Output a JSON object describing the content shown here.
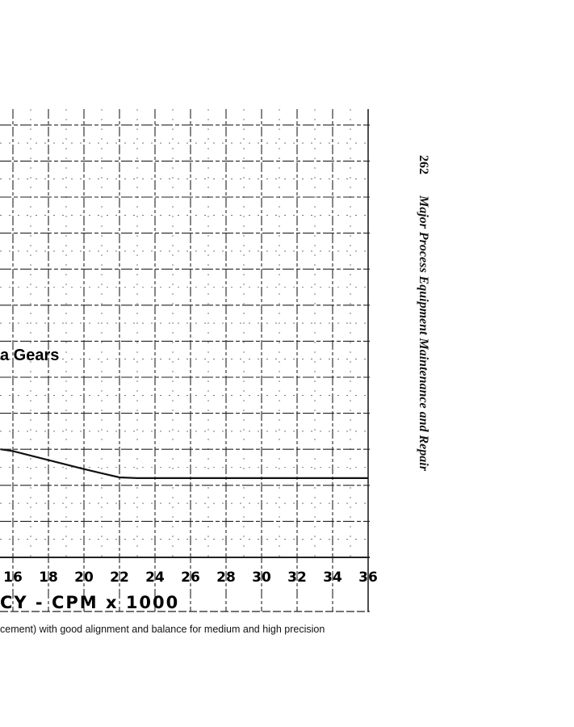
{
  "chart_data": {
    "type": "line",
    "title": "",
    "xlabel": "CY - CPM x 1000",
    "ylabel": "",
    "xlim": [
      15.3,
      36
    ],
    "x_ticks": [
      "16",
      "18",
      "20",
      "22",
      "24",
      "26",
      "28",
      "30",
      "32",
      "34",
      "36"
    ],
    "grid": true,
    "series": [
      {
        "name": "a Gears",
        "x": [
          15.3,
          16,
          18,
          20,
          22,
          23,
          24,
          26,
          28,
          30,
          32,
          34,
          36
        ],
        "y": [
          3.0,
          2.95,
          2.7,
          2.45,
          2.22,
          2.2,
          2.2,
          2.2,
          2.2,
          2.2,
          2.2,
          2.2,
          2.2
        ]
      }
    ],
    "y_units_note": "y in grid divisions above bottom axis line (no y tick labels visible)"
  },
  "caption": "cement) with good alignment and balance for medium and high precision",
  "side": {
    "page_number": "262",
    "title": "Major Process Equipment Maintenance and Repair"
  }
}
